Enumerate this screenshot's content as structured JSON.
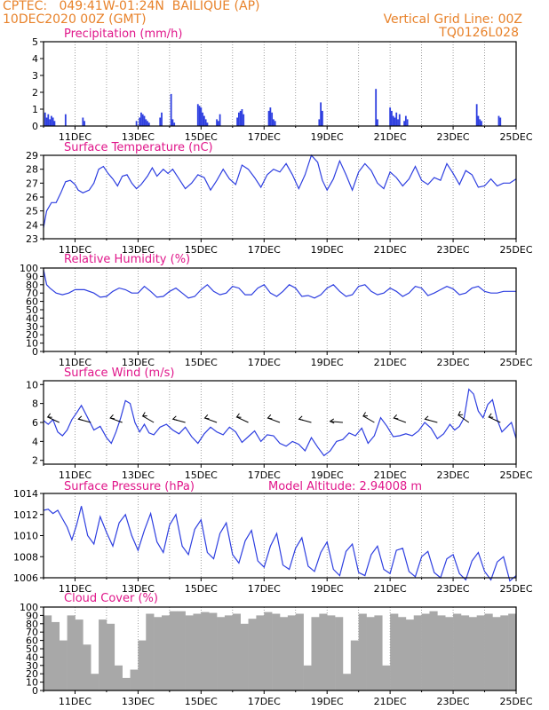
{
  "header": {
    "line1": "CPTEC:   049:41W-01:24N  BAILIQUE (AP)",
    "line2": "10DEC2020 00Z (GMT)",
    "right1": "Vertical Grid Line: 00Z",
    "right2": "TQ0126L028"
  },
  "colors": {
    "header": "#e8822a",
    "title": "#e0168a",
    "series": "#2e3fe0",
    "cloud": "#a8a8a8",
    "grid": "#888888"
  },
  "chart_data": [
    {
      "type": "bar",
      "id": "precip",
      "title": "Precipitation (mm/h)",
      "ylim": [
        0,
        5
      ],
      "yticks": [
        0,
        1,
        2,
        3,
        4,
        5
      ],
      "x_start": "10DEC2020 00Z",
      "x_end": "25DEC2020 00Z",
      "xticks": [
        "11DEC",
        "13DEC",
        "15DEC",
        "17DEC",
        "19DEC",
        "21DEC",
        "23DEC",
        "25DEC"
      ],
      "x": [
        0.05,
        0.1,
        0.15,
        0.2,
        0.25,
        0.3,
        0.35,
        0.7,
        1.25,
        1.3,
        2.95,
        3.05,
        3.1,
        3.15,
        3.2,
        3.25,
        3.3,
        3.35,
        3.7,
        3.75,
        4.05,
        4.1,
        4.15,
        4.9,
        4.95,
        5.0,
        5.05,
        5.1,
        5.15,
        5.2,
        5.5,
        5.55,
        5.6,
        6.15,
        6.2,
        6.25,
        6.3,
        6.35,
        7.15,
        7.2,
        7.25,
        7.3,
        7.35,
        8.75,
        8.8,
        8.85,
        10.55,
        10.6,
        11.0,
        11.05,
        11.1,
        11.15,
        11.2,
        11.25,
        11.3,
        11.45,
        11.5,
        11.55,
        13.75,
        13.8,
        13.85,
        13.9,
        14.45,
        14.5
      ],
      "values": [
        0.8,
        0.5,
        0.7,
        0.4,
        0.6,
        0.5,
        0.3,
        0.7,
        0.5,
        0.3,
        0.3,
        0.5,
        0.8,
        0.7,
        0.6,
        0.4,
        0.3,
        0.2,
        0.5,
        0.8,
        1.9,
        0.4,
        0.2,
        1.3,
        1.2,
        1.1,
        0.8,
        0.6,
        0.4,
        0.2,
        0.4,
        0.3,
        0.7,
        0.5,
        0.8,
        0.9,
        1.0,
        0.7,
        0.9,
        1.1,
        0.8,
        0.4,
        0.3,
        0.4,
        1.4,
        0.9,
        2.2,
        0.4,
        1.1,
        0.9,
        0.6,
        0.5,
        0.8,
        0.4,
        0.7,
        0.3,
        0.6,
        0.4,
        1.3,
        0.6,
        0.4,
        0.3,
        0.6,
        0.5
      ]
    },
    {
      "type": "line",
      "id": "temp",
      "title": "Surface Temperature (nC)",
      "ylim": [
        23,
        29
      ],
      "yticks": [
        23,
        24,
        25,
        26,
        27,
        28,
        29
      ],
      "x_start": "10DEC2020 00Z",
      "x_end": "25DEC2020 00Z",
      "xticks": [
        "11DEC",
        "13DEC",
        "15DEC",
        "17DEC",
        "19DEC",
        "21DEC",
        "23DEC",
        "25DEC"
      ],
      "x": [
        0,
        0.1,
        0.25,
        0.4,
        0.55,
        0.7,
        0.85,
        1.0,
        1.1,
        1.25,
        1.45,
        1.6,
        1.75,
        1.9,
        2.05,
        2.2,
        2.35,
        2.5,
        2.65,
        2.8,
        2.95,
        3.1,
        3.3,
        3.45,
        3.6,
        3.8,
        3.95,
        4.1,
        4.3,
        4.5,
        4.7,
        4.9,
        5.1,
        5.3,
        5.5,
        5.7,
        5.9,
        6.1,
        6.3,
        6.5,
        6.7,
        6.9,
        7.1,
        7.3,
        7.5,
        7.7,
        7.9,
        8.1,
        8.3,
        8.5,
        8.7,
        8.85,
        9.0,
        9.2,
        9.4,
        9.6,
        9.8,
        10.0,
        10.2,
        10.4,
        10.6,
        10.8,
        11.0,
        11.2,
        11.4,
        11.6,
        11.8,
        12.0,
        12.2,
        12.4,
        12.6,
        12.8,
        13.0,
        13.2,
        13.4,
        13.6,
        13.8,
        14.0,
        14.2,
        14.4,
        14.6,
        14.8,
        15.0
      ],
      "values": [
        23.8,
        25.0,
        25.6,
        25.6,
        26.3,
        27.1,
        27.2,
        26.9,
        26.5,
        26.3,
        26.5,
        27.0,
        28.0,
        28.2,
        27.7,
        27.3,
        26.8,
        27.5,
        27.6,
        27.0,
        26.6,
        26.9,
        27.5,
        28.1,
        27.5,
        28.0,
        27.7,
        28.0,
        27.3,
        26.6,
        27.0,
        27.6,
        27.4,
        26.5,
        27.2,
        28.0,
        27.3,
        26.9,
        28.3,
        28.0,
        27.4,
        26.7,
        27.6,
        28.0,
        27.8,
        28.4,
        27.6,
        26.6,
        27.6,
        29.0,
        28.5,
        27.2,
        26.5,
        27.3,
        28.6,
        27.6,
        26.5,
        27.8,
        28.4,
        27.9,
        27.0,
        26.6,
        27.8,
        27.4,
        26.8,
        27.3,
        28.2,
        27.2,
        26.9,
        27.4,
        27.2,
        28.4,
        27.7,
        26.9,
        27.9,
        27.6,
        26.7,
        26.8,
        27.3,
        26.8,
        27.0,
        27.0,
        27.3
      ]
    },
    {
      "type": "line",
      "id": "rh",
      "title": "Relative Humidity (%)",
      "ylim": [
        0,
        100
      ],
      "yticks": [
        0,
        10,
        20,
        30,
        40,
        50,
        60,
        70,
        80,
        90,
        100
      ],
      "x_start": "10DEC2020 00Z",
      "x_end": "25DEC2020 00Z",
      "xticks": [
        "11DEC",
        "13DEC",
        "15DEC",
        "17DEC",
        "19DEC",
        "21DEC",
        "23DEC",
        "25DEC"
      ],
      "x": [
        0,
        0.1,
        0.2,
        0.4,
        0.6,
        0.8,
        1.0,
        1.3,
        1.6,
        1.8,
        2.0,
        2.2,
        2.4,
        2.6,
        2.8,
        3.0,
        3.2,
        3.4,
        3.6,
        3.8,
        4.0,
        4.2,
        4.4,
        4.6,
        4.8,
        5.0,
        5.2,
        5.4,
        5.6,
        5.8,
        6.0,
        6.2,
        6.4,
        6.6,
        6.8,
        7.0,
        7.2,
        7.4,
        7.6,
        7.8,
        8.0,
        8.2,
        8.4,
        8.6,
        8.8,
        9.0,
        9.2,
        9.4,
        9.6,
        9.8,
        10.0,
        10.2,
        10.4,
        10.6,
        10.8,
        11.0,
        11.2,
        11.4,
        11.6,
        11.8,
        12.0,
        12.2,
        12.4,
        12.6,
        12.8,
        13.0,
        13.2,
        13.4,
        13.6,
        13.8,
        14.0,
        14.2,
        14.4,
        14.6,
        14.8,
        15.0
      ],
      "values": [
        98,
        80,
        76,
        70,
        68,
        70,
        74,
        74,
        70,
        65,
        66,
        72,
        76,
        74,
        70,
        70,
        78,
        72,
        65,
        66,
        72,
        76,
        70,
        64,
        66,
        74,
        80,
        72,
        68,
        70,
        78,
        76,
        68,
        68,
        76,
        80,
        70,
        66,
        72,
        80,
        76,
        66,
        67,
        64,
        68,
        76,
        80,
        72,
        66,
        68,
        78,
        80,
        72,
        68,
        70,
        76,
        72,
        66,
        70,
        78,
        76,
        67,
        70,
        74,
        78,
        75,
        68,
        70,
        76,
        78,
        72,
        70,
        70,
        72,
        72,
        72
      ]
    },
    {
      "type": "line",
      "id": "wind",
      "title": "Surface Wind (m/s)",
      "ylim": [
        1.6,
        10.4
      ],
      "yticks": [
        2,
        4,
        6,
        8,
        10
      ],
      "x_start": "10DEC2020 00Z",
      "x_end": "25DEC2020 00Z",
      "xticks": [
        "11DEC",
        "13DEC",
        "15DEC",
        "17DEC",
        "19DEC",
        "21DEC",
        "23DEC",
        "25DEC"
      ],
      "x": [
        0,
        0.15,
        0.3,
        0.45,
        0.6,
        0.75,
        0.9,
        1.05,
        1.2,
        1.4,
        1.6,
        1.8,
        2.0,
        2.15,
        2.3,
        2.45,
        2.6,
        2.75,
        2.9,
        3.05,
        3.2,
        3.35,
        3.5,
        3.7,
        3.9,
        4.1,
        4.3,
        4.5,
        4.7,
        4.9,
        5.1,
        5.3,
        5.5,
        5.7,
        5.9,
        6.1,
        6.3,
        6.5,
        6.7,
        6.9,
        7.1,
        7.3,
        7.5,
        7.7,
        7.9,
        8.1,
        8.3,
        8.5,
        8.7,
        8.9,
        9.1,
        9.3,
        9.5,
        9.7,
        9.9,
        10.1,
        10.3,
        10.5,
        10.7,
        10.9,
        11.1,
        11.3,
        11.5,
        11.7,
        11.9,
        12.1,
        12.3,
        12.5,
        12.7,
        12.9,
        13.05,
        13.2,
        13.35,
        13.5,
        13.65,
        13.8,
        13.95,
        14.1,
        14.25,
        14.4,
        14.55,
        14.7,
        14.85,
        15.0
      ],
      "values": [
        6.2,
        5.8,
        6.3,
        5.0,
        4.6,
        5.2,
        6.3,
        7.0,
        7.8,
        6.5,
        5.2,
        5.6,
        4.4,
        3.8,
        5.0,
        6.5,
        8.3,
        8.0,
        6.0,
        5.0,
        5.8,
        4.9,
        4.7,
        5.5,
        5.8,
        5.2,
        4.8,
        5.5,
        4.5,
        3.8,
        4.8,
        5.5,
        5.0,
        4.7,
        5.5,
        5.0,
        3.9,
        4.5,
        5.1,
        4.0,
        4.7,
        4.6,
        3.8,
        3.5,
        4.0,
        3.7,
        3.0,
        4.4,
        3.4,
        2.5,
        3.0,
        4.0,
        4.2,
        4.9,
        4.6,
        5.4,
        3.8,
        4.6,
        6.5,
        5.6,
        4.5,
        4.6,
        4.8,
        4.6,
        5.1,
        6.0,
        5.4,
        4.3,
        4.8,
        5.8,
        5.2,
        5.6,
        6.5,
        9.5,
        9.0,
        7.2,
        6.5,
        7.9,
        8.4,
        6.3,
        5.0,
        5.5,
        6.0,
        4.3
      ],
      "arrows": [
        {
          "x": 0.5,
          "a": 205
        },
        {
          "x": 1.5,
          "a": 195
        },
        {
          "x": 2.5,
          "a": 200
        },
        {
          "x": 3.5,
          "a": 210
        },
        {
          "x": 4.5,
          "a": 195
        },
        {
          "x": 5.5,
          "a": 200
        },
        {
          "x": 6.5,
          "a": 205
        },
        {
          "x": 7.5,
          "a": 200
        },
        {
          "x": 8.5,
          "a": 195
        },
        {
          "x": 9.5,
          "a": 185
        },
        {
          "x": 10.5,
          "a": 210
        },
        {
          "x": 11.5,
          "a": 200
        },
        {
          "x": 12.5,
          "a": 195
        },
        {
          "x": 13.5,
          "a": 215
        },
        {
          "x": 14.5,
          "a": 205
        }
      ]
    },
    {
      "type": "line",
      "id": "pres",
      "title": "Surface Pressure (hPa)",
      "subtitle": "Model Altitude: 2.94008 m",
      "ylim": [
        1006,
        1014
      ],
      "yticks": [
        1006,
        1008,
        1010,
        1012,
        1014
      ],
      "x_start": "10DEC2020 00Z",
      "x_end": "25DEC2020 00Z",
      "xticks": [
        "11DEC",
        "13DEC",
        "15DEC",
        "17DEC",
        "19DEC",
        "21DEC",
        "23DEC",
        "25DEC"
      ],
      "x": [
        0,
        0.15,
        0.3,
        0.45,
        0.6,
        0.75,
        0.9,
        1.05,
        1.2,
        1.4,
        1.6,
        1.8,
        2.0,
        2.2,
        2.4,
        2.6,
        2.8,
        3.0,
        3.2,
        3.4,
        3.6,
        3.8,
        4.0,
        4.2,
        4.4,
        4.6,
        4.8,
        5.0,
        5.2,
        5.4,
        5.6,
        5.8,
        6.0,
        6.2,
        6.4,
        6.6,
        6.8,
        7.0,
        7.2,
        7.4,
        7.6,
        7.8,
        8.0,
        8.2,
        8.4,
        8.6,
        8.8,
        9.0,
        9.2,
        9.4,
        9.6,
        9.8,
        10.0,
        10.2,
        10.4,
        10.6,
        10.8,
        11.0,
        11.2,
        11.4,
        11.6,
        11.8,
        12.0,
        12.2,
        12.4,
        12.6,
        12.8,
        13.0,
        13.2,
        13.4,
        13.6,
        13.8,
        14.0,
        14.2,
        14.4,
        14.6,
        14.8,
        15.0
      ],
      "values": [
        1012.4,
        1012.5,
        1012.1,
        1012.4,
        1011.6,
        1010.8,
        1009.6,
        1011.0,
        1012.8,
        1010.0,
        1009.2,
        1011.8,
        1010.3,
        1009.0,
        1011.2,
        1012.0,
        1010.0,
        1008.6,
        1010.5,
        1012.1,
        1009.4,
        1008.4,
        1011.0,
        1012.0,
        1009.0,
        1008.2,
        1010.6,
        1011.5,
        1008.4,
        1007.8,
        1010.2,
        1011.2,
        1008.2,
        1007.4,
        1009.5,
        1010.5,
        1007.6,
        1007.0,
        1009.0,
        1010.2,
        1007.2,
        1006.8,
        1008.8,
        1009.8,
        1007.1,
        1006.6,
        1008.4,
        1009.4,
        1006.8,
        1006.2,
        1008.5,
        1009.2,
        1006.5,
        1006.2,
        1008.2,
        1009.0,
        1006.8,
        1006.4,
        1008.6,
        1008.8,
        1006.6,
        1006.1,
        1008.0,
        1008.5,
        1006.5,
        1006.0,
        1007.8,
        1008.2,
        1006.4,
        1005.8,
        1007.6,
        1008.4,
        1006.6,
        1005.8,
        1007.5,
        1008.0,
        1005.7,
        1006.2
      ]
    },
    {
      "type": "bar",
      "id": "cloud",
      "title": "Cloud Cover (%)",
      "ylim": [
        0,
        100
      ],
      "yticks": [
        0,
        10,
        20,
        30,
        40,
        50,
        60,
        70,
        80,
        90,
        100
      ],
      "x_start": "10DEC2020 00Z",
      "x_end": "25DEC2020 00Z",
      "xticks": [
        "11DEC",
        "13DEC",
        "15DEC",
        "17DEC",
        "19DEC",
        "21DEC",
        "23DEC",
        "25DEC"
      ],
      "x": [
        0,
        0.25,
        0.5,
        0.75,
        1.0,
        1.25,
        1.5,
        1.75,
        2.0,
        2.25,
        2.5,
        2.75,
        3.0,
        3.25,
        3.5,
        3.75,
        4.0,
        4.25,
        4.5,
        4.75,
        5.0,
        5.25,
        5.5,
        5.75,
        6.0,
        6.25,
        6.5,
        6.75,
        7.0,
        7.25,
        7.5,
        7.75,
        8.0,
        8.25,
        8.5,
        8.75,
        9.0,
        9.25,
        9.5,
        9.75,
        10.0,
        10.25,
        10.5,
        10.75,
        11.0,
        11.25,
        11.5,
        11.75,
        12.0,
        12.25,
        12.5,
        12.75,
        13.0,
        13.25,
        13.5,
        13.75,
        14.0,
        14.25,
        14.5,
        14.75
      ],
      "values": [
        90,
        82,
        60,
        90,
        85,
        55,
        20,
        85,
        80,
        30,
        15,
        25,
        60,
        92,
        88,
        90,
        95,
        95,
        90,
        92,
        94,
        93,
        88,
        90,
        92,
        80,
        86,
        90,
        94,
        92,
        88,
        90,
        92,
        30,
        88,
        92,
        90,
        88,
        20,
        60,
        92,
        88,
        90,
        30,
        92,
        88,
        85,
        90,
        92,
        95,
        90,
        88,
        92,
        90,
        88,
        90,
        92,
        88,
        90,
        92
      ]
    }
  ]
}
